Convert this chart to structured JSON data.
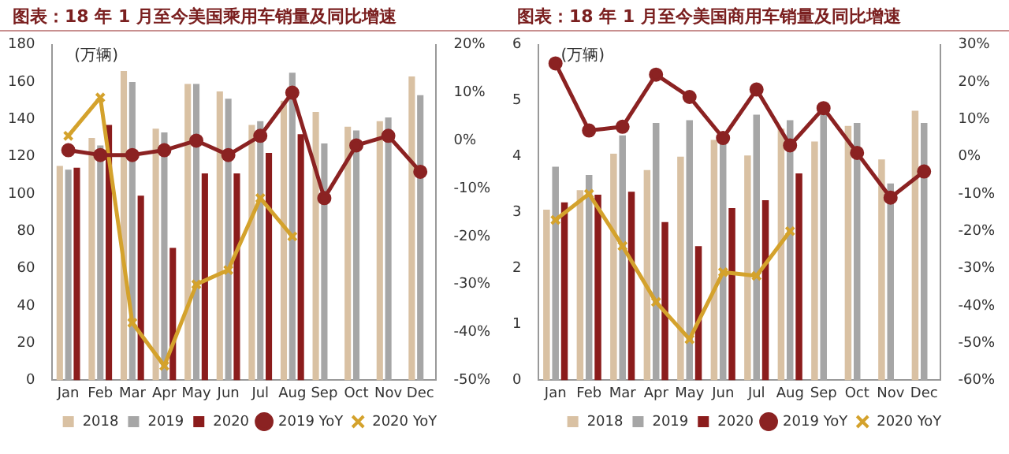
{
  "chart_data": [
    {
      "type": "bar",
      "title": "图表：18 年 1 月至今美国乘用车销量及同比增速",
      "ylabel": "(万辆)",
      "categories": [
        "Jan",
        "Feb",
        "Mar",
        "Apr",
        "May",
        "Jun",
        "Jul",
        "Aug",
        "Sep",
        "Oct",
        "Nov",
        "Dec"
      ],
      "ylim": [
        0,
        180
      ],
      "yticks": [
        0,
        20,
        40,
        60,
        80,
        100,
        120,
        140,
        160,
        180
      ],
      "y2lim": [
        -50,
        20
      ],
      "y2ticks": [
        {
          "value": -50,
          "label": "-50%"
        },
        {
          "value": -40,
          "label": "-40%"
        },
        {
          "value": -30,
          "label": "-30%"
        },
        {
          "value": -20,
          "label": "-20%"
        },
        {
          "value": -10,
          "label": "-10%"
        },
        {
          "value": 0,
          "label": "0%"
        },
        {
          "value": 10,
          "label": "10%"
        },
        {
          "value": 20,
          "label": "20%"
        }
      ],
      "grid": false,
      "legend": "bottom",
      "series": [
        {
          "name": "2018",
          "color": "#d9c1a3",
          "values": [
            115,
            130,
            166,
            135,
            159,
            155,
            137,
            150,
            144,
            136,
            139,
            163
          ]
        },
        {
          "name": "2019",
          "color": "#a6a6a6",
          "values": [
            113,
            126,
            160,
            133,
            159,
            151,
            139,
            165,
            127,
            134,
            141,
            153
          ]
        },
        {
          "name": "2020",
          "color": "#8b1c1c",
          "values": [
            114,
            137,
            99,
            71,
            111,
            111,
            122,
            132,
            null,
            null,
            null,
            null
          ]
        },
        {
          "name": "2019 YoY",
          "type": "line",
          "axis": "y2",
          "marker": "circle",
          "color": "#8b2222",
          "values": [
            -2,
            -3,
            -3,
            -2,
            0,
            -3,
            1,
            10,
            -12,
            -1,
            1,
            -6.5
          ]
        },
        {
          "name": "2020 YoY",
          "type": "line",
          "axis": "y2",
          "marker": "cross",
          "color": "#d4a22c",
          "values": [
            1,
            9,
            -38,
            -47,
            -30,
            -27,
            -12,
            -20,
            null,
            null,
            null,
            null
          ]
        }
      ]
    },
    {
      "type": "bar",
      "title": "图表：18 年 1 月至今美国商用车销量及同比增速",
      "ylabel": "(万辆)",
      "categories": [
        "Jan",
        "Feb",
        "Mar",
        "Apr",
        "May",
        "Jun",
        "Jul",
        "Aug",
        "Sep",
        "Oct",
        "Nov",
        "Dec"
      ],
      "ylim": [
        0,
        6
      ],
      "yticks": [
        0,
        1,
        2,
        3,
        4,
        5,
        6
      ],
      "y2lim": [
        -60,
        30
      ],
      "y2ticks": [
        {
          "value": -60,
          "label": "-60%"
        },
        {
          "value": -50,
          "label": "-50%"
        },
        {
          "value": -40,
          "label": "-40%"
        },
        {
          "value": -30,
          "label": "-30%"
        },
        {
          "value": -20,
          "label": "-20%"
        },
        {
          "value": -10,
          "label": "-10%"
        },
        {
          "value": 0,
          "label": "0%"
        },
        {
          "value": 10,
          "label": "10%"
        },
        {
          "value": 20,
          "label": "20%"
        },
        {
          "value": 30,
          "label": "30%"
        }
      ],
      "grid": false,
      "legend": "bottom",
      "series": [
        {
          "name": "2018",
          "color": "#d9c1a3",
          "values": [
            3.05,
            3.4,
            4.05,
            3.76,
            4.0,
            4.3,
            4.02,
            4.5,
            4.27,
            4.55,
            3.95,
            4.82
          ]
        },
        {
          "name": "2019",
          "color": "#a6a6a6",
          "values": [
            3.82,
            3.67,
            4.38,
            4.6,
            4.65,
            4.3,
            4.75,
            4.65,
            4.8,
            4.6,
            3.52,
            4.6
          ]
        },
        {
          "name": "2020",
          "color": "#8b1c1c",
          "values": [
            3.18,
            3.32,
            3.37,
            2.83,
            2.4,
            3.08,
            3.22,
            3.7,
            null,
            null,
            null,
            null
          ]
        },
        {
          "name": "2019 YoY",
          "type": "line",
          "axis": "y2",
          "marker": "circle",
          "color": "#8b2222",
          "values": [
            25,
            7,
            8,
            22,
            16,
            5,
            18,
            3,
            13,
            1,
            -11,
            -4
          ]
        },
        {
          "name": "2020 YoY",
          "type": "line",
          "axis": "y2",
          "marker": "cross",
          "color": "#d4a22c",
          "values": [
            -17,
            -10,
            -24,
            -39,
            -49,
            -31,
            -32,
            -20,
            null,
            null,
            null,
            null
          ]
        }
      ]
    }
  ]
}
